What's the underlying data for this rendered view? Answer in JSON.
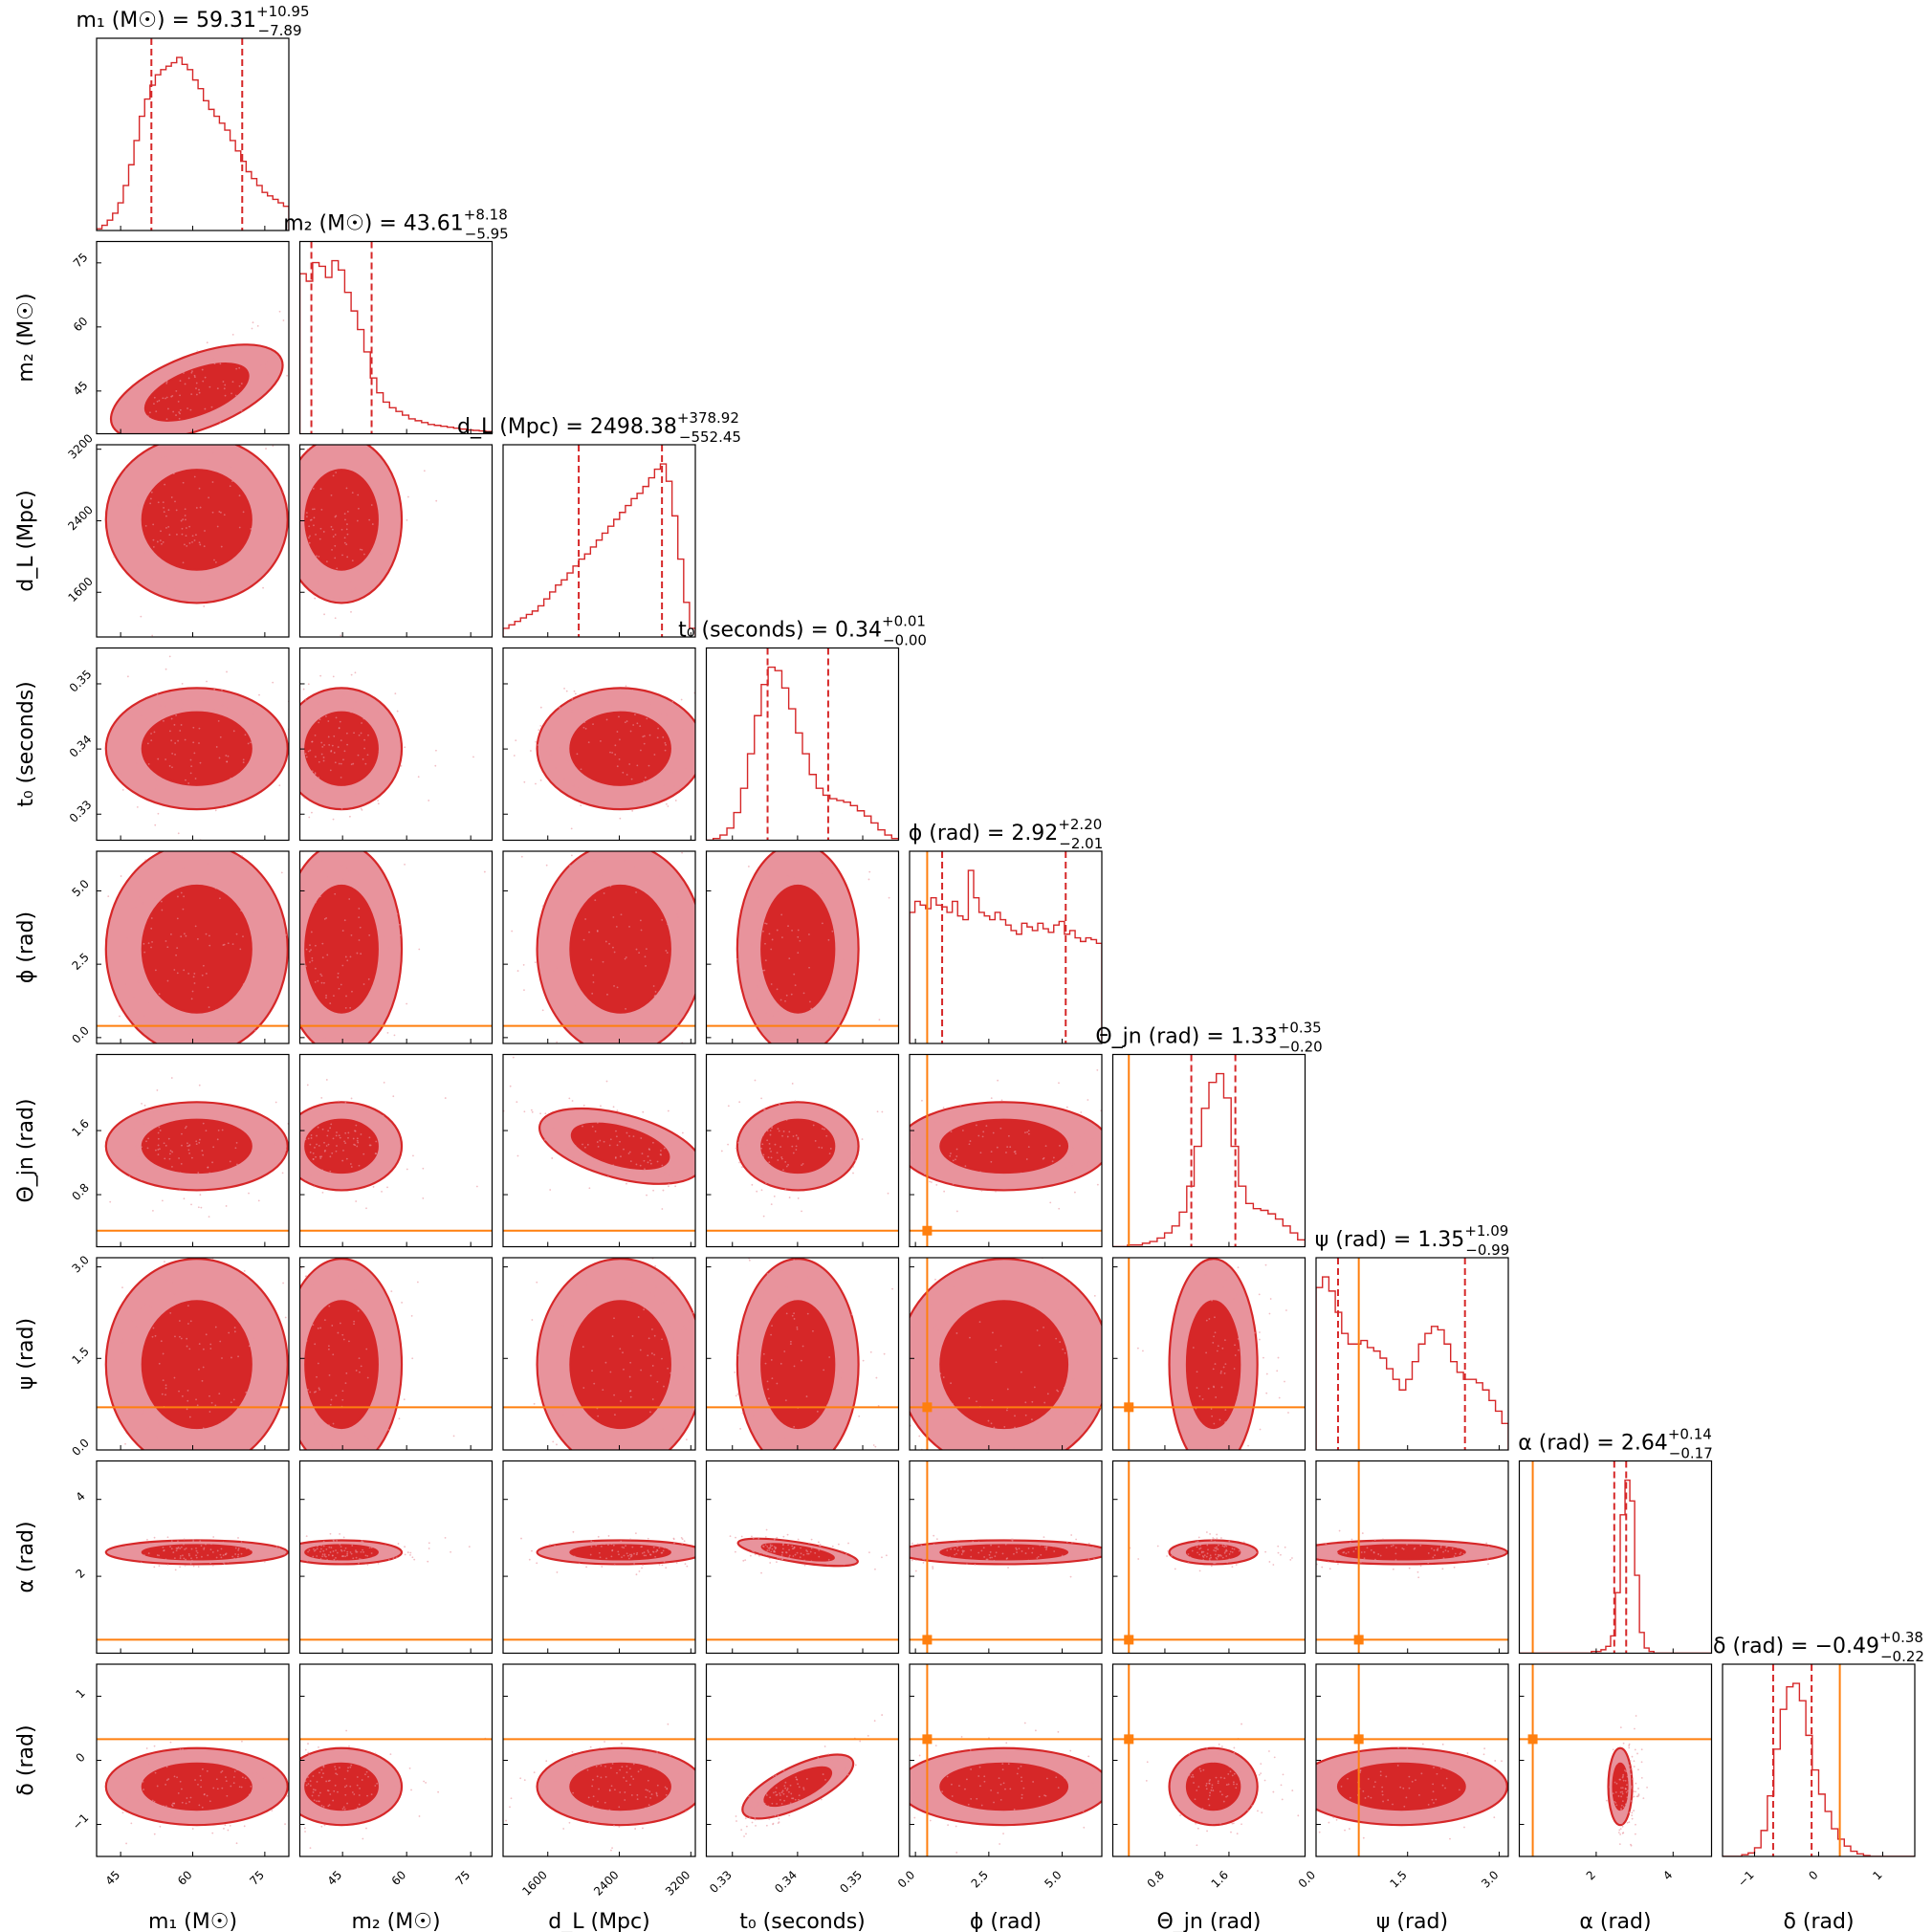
{
  "chart_data": {
    "type": "corner",
    "colors": {
      "posterior": "#d62728",
      "posterior_light": "#e8939c",
      "truth": "#ff7f0e",
      "frame": "#000000"
    },
    "parameters": [
      {
        "key": "m1",
        "label": "m₁ (M☉)",
        "title_name": "m₁ (M☉)",
        "median": "59.31",
        "plus": "+10.95",
        "minus": "−7.89",
        "range": [
          40,
          80
        ],
        "ticks": [
          45,
          60,
          75
        ],
        "tick_labels": [
          "45",
          "60",
          "75"
        ],
        "q16": 51.4,
        "q84": 70.3,
        "truth": null,
        "hist": [
          0.01,
          0.03,
          0.06,
          0.1,
          0.16,
          0.26,
          0.38,
          0.52,
          0.66,
          0.76,
          0.84,
          0.9,
          0.93,
          0.95,
          0.97,
          1.0,
          0.96,
          0.93,
          0.87,
          0.82,
          0.75,
          0.7,
          0.66,
          0.62,
          0.58,
          0.52,
          0.46,
          0.4,
          0.34,
          0.3,
          0.26,
          0.22,
          0.2,
          0.18,
          0.16,
          0.14
        ]
      },
      {
        "key": "m2",
        "label": "m₂ (M☉)",
        "title_name": "m₂ (M☉)",
        "median": "43.61",
        "plus": "+8.18",
        "minus": "−5.95",
        "range": [
          35,
          80
        ],
        "ticks": [
          45,
          60,
          75
        ],
        "tick_labels": [
          "45",
          "60",
          "75"
        ],
        "q16": 37.7,
        "q84": 51.8,
        "truth": null,
        "hist": [
          0.86,
          0.82,
          0.92,
          0.9,
          0.84,
          0.93,
          0.88,
          0.76,
          0.66,
          0.56,
          0.44,
          0.3,
          0.22,
          0.17,
          0.14,
          0.12,
          0.1,
          0.08,
          0.07,
          0.06,
          0.05,
          0.045,
          0.04,
          0.035,
          0.03,
          0.025,
          0.02,
          0.018,
          0.015,
          0.012
        ]
      },
      {
        "key": "dL",
        "label": "d_L (Mpc)",
        "title_name": "d_L (Mpc)",
        "median": "2498.38",
        "plus": "+378.92",
        "minus": "−552.45",
        "range": [
          1100,
          3250
        ],
        "ticks": [
          1600,
          2400,
          3200
        ],
        "tick_labels": [
          "1600",
          "2400",
          "3200"
        ],
        "q16": 1946,
        "q84": 2877,
        "truth": null,
        "hist": [
          0.05,
          0.07,
          0.09,
          0.11,
          0.13,
          0.15,
          0.18,
          0.22,
          0.26,
          0.3,
          0.33,
          0.37,
          0.41,
          0.45,
          0.48,
          0.52,
          0.56,
          0.6,
          0.64,
          0.68,
          0.72,
          0.76,
          0.8,
          0.83,
          0.87,
          0.92,
          0.97,
          1.0,
          0.9,
          0.7,
          0.45,
          0.2,
          0.05
        ]
      },
      {
        "key": "t0",
        "label": "t₀ (seconds)",
        "title_name": "t₀ (seconds)",
        "median": "0.34",
        "plus": "+0.01",
        "minus": "−0.00",
        "range": [
          0.326,
          0.3555
        ],
        "ticks": [
          0.33,
          0.34,
          0.35
        ],
        "tick_labels": [
          "0.33",
          "0.34",
          "0.35"
        ],
        "q16": 0.3354,
        "q84": 0.3447,
        "truth": null,
        "hist": [
          0.0,
          0.01,
          0.03,
          0.07,
          0.16,
          0.3,
          0.5,
          0.72,
          0.9,
          1.0,
          0.98,
          0.88,
          0.76,
          0.62,
          0.5,
          0.38,
          0.3,
          0.26,
          0.24,
          0.23,
          0.22,
          0.2,
          0.17,
          0.14,
          0.1,
          0.06,
          0.03,
          0.01
        ]
      },
      {
        "key": "phi",
        "label": "ϕ (rad)",
        "title_name": "ϕ (rad)",
        "median": "2.92",
        "plus": "+2.20",
        "minus": "−2.01",
        "range": [
          -0.2,
          6.35
        ],
        "ticks": [
          0.0,
          2.5,
          5.0
        ],
        "tick_labels": [
          "0.0",
          "2.5",
          "5.0"
        ],
        "q16": 0.91,
        "q84": 5.12,
        "truth": 0.4,
        "hist": [
          0.72,
          0.78,
          0.76,
          0.74,
          0.8,
          0.76,
          0.75,
          0.72,
          0.78,
          0.7,
          0.68,
          0.95,
          0.8,
          0.72,
          0.7,
          0.68,
          0.72,
          0.68,
          0.65,
          0.62,
          0.6,
          0.66,
          0.64,
          0.62,
          0.66,
          0.63,
          0.61,
          0.65,
          0.67,
          0.6,
          0.62,
          0.58,
          0.56,
          0.58,
          0.57,
          0.55
        ]
      },
      {
        "key": "theta_jn",
        "label": "Θ_jn (rad)",
        "title_name": "Θ_jn (rad)",
        "median": "1.33",
        "plus": "+0.35",
        "minus": "−0.20",
        "range": [
          0.15,
          2.55
        ],
        "ticks": [
          0.8,
          1.6
        ],
        "tick_labels": [
          "0.8",
          "1.6"
        ],
        "q16": 1.13,
        "q84": 1.68,
        "truth": 0.35,
        "hist": [
          0.0,
          0.0,
          0.01,
          0.01,
          0.02,
          0.03,
          0.05,
          0.08,
          0.12,
          0.2,
          0.35,
          0.58,
          0.8,
          0.95,
          1.0,
          0.86,
          0.58,
          0.35,
          0.25,
          0.22,
          0.21,
          0.19,
          0.16,
          0.12,
          0.08,
          0.04
        ]
      },
      {
        "key": "psi",
        "label": "ψ (rad)",
        "title_name": "ψ (rad)",
        "median": "1.35",
        "plus": "+1.09",
        "minus": "−0.99",
        "range": [
          0.0,
          3.15
        ],
        "ticks": [
          0.0,
          1.5,
          3.0
        ],
        "tick_labels": [
          "0.0",
          "1.5",
          "3.0"
        ],
        "q16": 0.36,
        "q84": 2.44,
        "truth": 0.7,
        "hist": [
          0.92,
          0.98,
          0.9,
          0.78,
          0.66,
          0.6,
          0.6,
          0.62,
          0.58,
          0.56,
          0.52,
          0.46,
          0.4,
          0.34,
          0.4,
          0.5,
          0.6,
          0.66,
          0.7,
          0.68,
          0.6,
          0.5,
          0.44,
          0.4,
          0.4,
          0.38,
          0.34,
          0.28,
          0.22,
          0.15
        ]
      },
      {
        "key": "alpha",
        "label": "α (rad)",
        "title_name": "α (rad)",
        "median": "2.64",
        "plus": "+0.14",
        "minus": "−0.17",
        "range": [
          0.0,
          5.0
        ],
        "ticks": [
          2,
          4
        ],
        "tick_labels": [
          "2",
          "4"
        ],
        "q16": 2.47,
        "q84": 2.78,
        "truth": 0.35,
        "hist": [
          0.0,
          0.0,
          0.0,
          0.0,
          0.0,
          0.0,
          0.0,
          0.0,
          0.0,
          0.0,
          0.0,
          0.0,
          0.0,
          0.0,
          0.0,
          0.01,
          0.01,
          0.02,
          0.04,
          0.1,
          0.35,
          0.8,
          1.0,
          0.88,
          0.45,
          0.12,
          0.03,
          0.01,
          0.0,
          0.0,
          0.0,
          0.0,
          0.0,
          0.0,
          0.0,
          0.0,
          0.0,
          0.0,
          0.0,
          0.0
        ]
      },
      {
        "key": "delta",
        "label": "δ (rad)",
        "title_name": "δ (rad)",
        "median": "−0.49",
        "plus": "+0.38",
        "minus": "−0.22",
        "range": [
          -1.5,
          1.5
        ],
        "ticks": [
          -1,
          0,
          1
        ],
        "tick_labels": [
          "−1",
          "0",
          "1"
        ],
        "q16": -0.71,
        "q84": -0.11,
        "truth": 0.33,
        "hist": [
          0.0,
          0.0,
          0.0,
          0.01,
          0.02,
          0.05,
          0.15,
          0.35,
          0.62,
          0.85,
          0.98,
          1.0,
          0.9,
          0.7,
          0.5,
          0.36,
          0.26,
          0.16,
          0.1,
          0.06,
          0.03,
          0.015,
          0.005,
          0.0,
          0.0,
          0.0,
          0.0,
          0.0,
          0.0,
          0.0
        ]
      }
    ]
  }
}
